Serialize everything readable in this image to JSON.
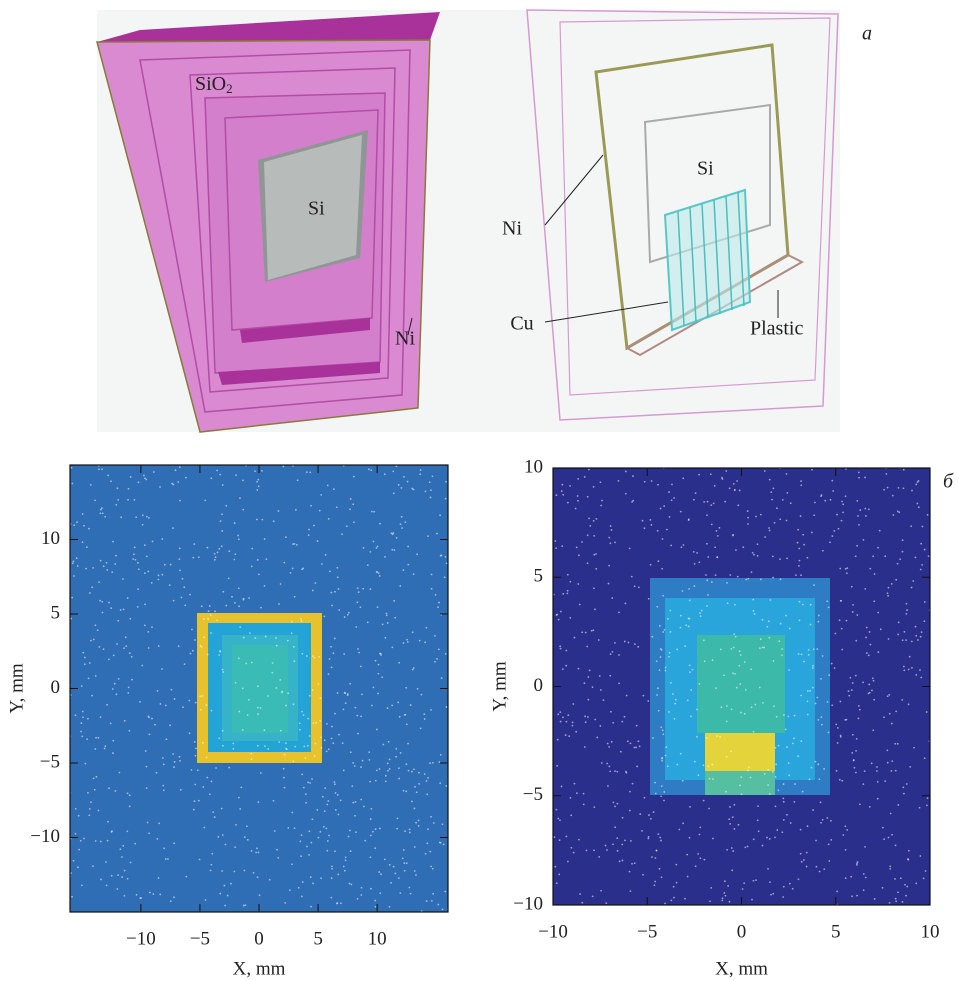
{
  "panel_a": {
    "label": "a",
    "left": {
      "sio2": "SiO",
      "sio2_sub": "2",
      "si": "Si",
      "ni": "Ni"
    },
    "right": {
      "si": "Si",
      "ni": "Ni",
      "cu": "Cu",
      "plastic": "Plastic"
    }
  },
  "panel_b_label": "б",
  "chart_data": [
    {
      "type": "image",
      "xlabel": "X, mm",
      "ylabel": "Y, mm",
      "xlim": [
        -16,
        16
      ],
      "ylim": [
        -15,
        15
      ],
      "xticks": [
        {
          "value": -10,
          "label": "−10"
        },
        {
          "value": -5,
          "label": "−5"
        },
        0,
        5,
        10
      ],
      "yticks": [
        {
          "value": -10,
          "label": "−10"
        },
        {
          "value": -5,
          "label": "−5"
        },
        0,
        5,
        10
      ]
    },
    {
      "type": "image",
      "xlabel": "X, mm",
      "ylabel": "Y, mm",
      "xlim": [
        -10,
        10
      ],
      "ylim": [
        -10,
        10
      ],
      "xticks": [
        {
          "value": -10,
          "label": "−10"
        },
        {
          "value": -5,
          "label": "−5"
        },
        0,
        5,
        10
      ],
      "yticks": [
        {
          "value": -10,
          "label": "−10"
        },
        {
          "value": -5,
          "label": "−5"
        },
        0,
        5,
        10
      ]
    }
  ]
}
